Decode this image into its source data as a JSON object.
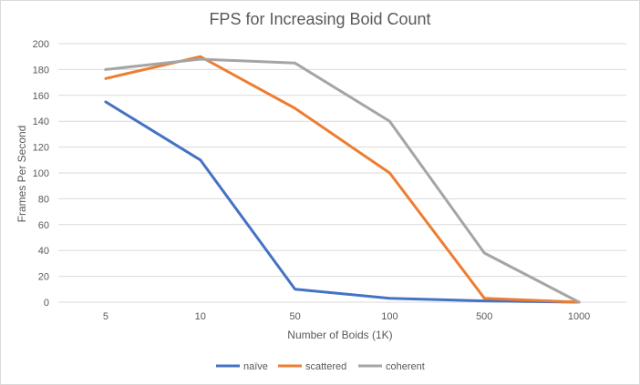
{
  "chart_data": {
    "type": "line",
    "title": "FPS for Increasing Boid Count",
    "xlabel": "Number of Boids (1K)",
    "ylabel": "Frames Per Second",
    "categories": [
      "5",
      "10",
      "50",
      "100",
      "500",
      "1000"
    ],
    "ylim": [
      0,
      200
    ],
    "yticks": [
      0,
      20,
      40,
      60,
      80,
      100,
      120,
      140,
      160,
      180,
      200
    ],
    "grid": true,
    "legend": "bottom",
    "series": [
      {
        "name": "naïve",
        "color": "#4472C4",
        "values": [
          155,
          110,
          10,
          3,
          1,
          0
        ]
      },
      {
        "name": "scattered",
        "color": "#ED7D31",
        "values": [
          173,
          190,
          150,
          100,
          3,
          0
        ]
      },
      {
        "name": "coherent",
        "color": "#A5A5A5",
        "values": [
          180,
          188,
          185,
          140,
          38,
          0
        ]
      }
    ]
  }
}
